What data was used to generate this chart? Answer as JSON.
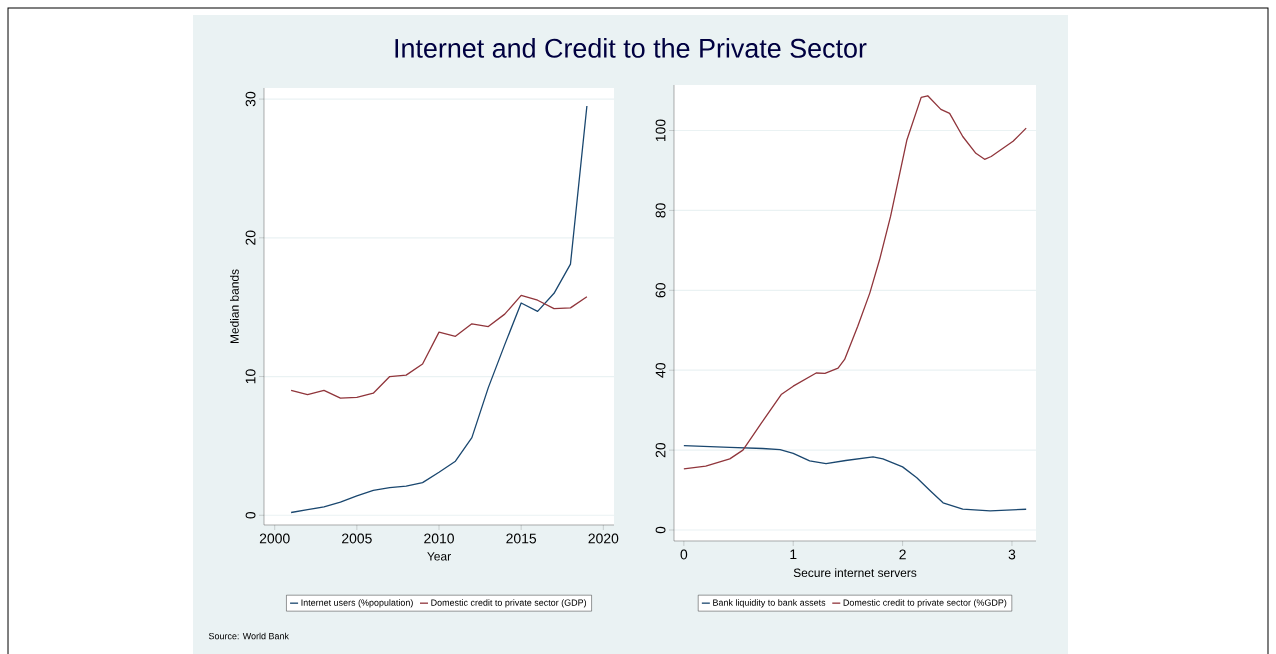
{
  "chart_data": [
    {
      "type": "line",
      "title": "Internet and Credit to the Private Sector",
      "xlabel": "Year",
      "ylabel": "Median bands",
      "x": [
        2001,
        2002,
        2003,
        2004,
        2005,
        2006,
        2007,
        2008,
        2009,
        2010,
        2011,
        2012,
        2013,
        2014,
        2015,
        2016,
        2017,
        2018,
        2019
      ],
      "series": [
        {
          "name": "Internet users (%population)",
          "color": "#1a476f",
          "values": [
            0.2,
            0.4,
            0.6,
            0.95,
            1.4,
            1.8,
            2.0,
            2.1,
            2.35,
            3.1,
            3.9,
            5.6,
            9.2,
            12.3,
            15.3,
            14.7,
            16.0,
            18.1,
            29.5
          ]
        },
        {
          "name": "Domestic credit to private sector (GDP)",
          "color": "#90353b",
          "values": [
            9.0,
            8.7,
            9.0,
            8.45,
            8.5,
            8.8,
            10.0,
            10.1,
            10.9,
            13.2,
            12.9,
            13.8,
            13.6,
            14.5,
            15.85,
            15.5,
            14.9,
            14.95,
            15.75
          ]
        }
      ],
      "xlim": [
        1999.35,
        2020.65
      ],
      "ylim": [
        -0.7,
        30.8
      ],
      "xticks": [
        2000,
        2005,
        2010,
        2015,
        2020
      ],
      "yticks": [
        0,
        10,
        20,
        30
      ],
      "grid": "y",
      "legend": "bottom",
      "marker": "none",
      "annotations": [
        "Source: World Bank"
      ]
    },
    {
      "type": "line",
      "xlabel": "Secure internet servers",
      "series": [
        {
          "name": "Bank liquidity to bank assets",
          "color": "#1a476f",
          "x": [
            0,
            0.42,
            0.72,
            0.88,
            1.0,
            1.15,
            1.3,
            1.48,
            1.73,
            1.82,
            2.0,
            2.13,
            2.25,
            2.37,
            2.55,
            2.8,
            3.13
          ],
          "values": [
            21.1,
            20.7,
            20.4,
            20.1,
            19.2,
            17.3,
            16.6,
            17.4,
            18.3,
            17.8,
            15.8,
            13.1,
            9.9,
            6.8,
            5.2,
            4.8,
            5.2
          ]
        },
        {
          "name": "Domestic credit to private sector (%GDP)",
          "color": "#90353b",
          "x": [
            0,
            0.2,
            0.42,
            0.54,
            0.71,
            0.89,
            1.0,
            1.21,
            1.29,
            1.41,
            1.47,
            1.59,
            1.7,
            1.79,
            1.89,
            2.04,
            2.17,
            2.23,
            2.35,
            2.43,
            2.55,
            2.67,
            2.75,
            2.81,
            3.01,
            3.13
          ],
          "values": [
            15.3,
            16.0,
            17.8,
            20.0,
            26.8,
            33.9,
            36.0,
            39.3,
            39.2,
            40.5,
            42.7,
            51.0,
            59.3,
            67.7,
            78.5,
            97.7,
            108.3,
            108.7,
            105.3,
            104.3,
            98.5,
            94.3,
            92.8,
            93.5,
            97.3,
            100.6
          ]
        }
      ],
      "xlim": [
        -0.09,
        3.22
      ],
      "ylim": [
        -2.75,
        111.4
      ],
      "xticks": [
        0,
        1,
        2,
        3
      ],
      "yticks": [
        0,
        20,
        40,
        60,
        80,
        100
      ],
      "grid": "y",
      "legend": "bottom",
      "marker": "none"
    }
  ]
}
